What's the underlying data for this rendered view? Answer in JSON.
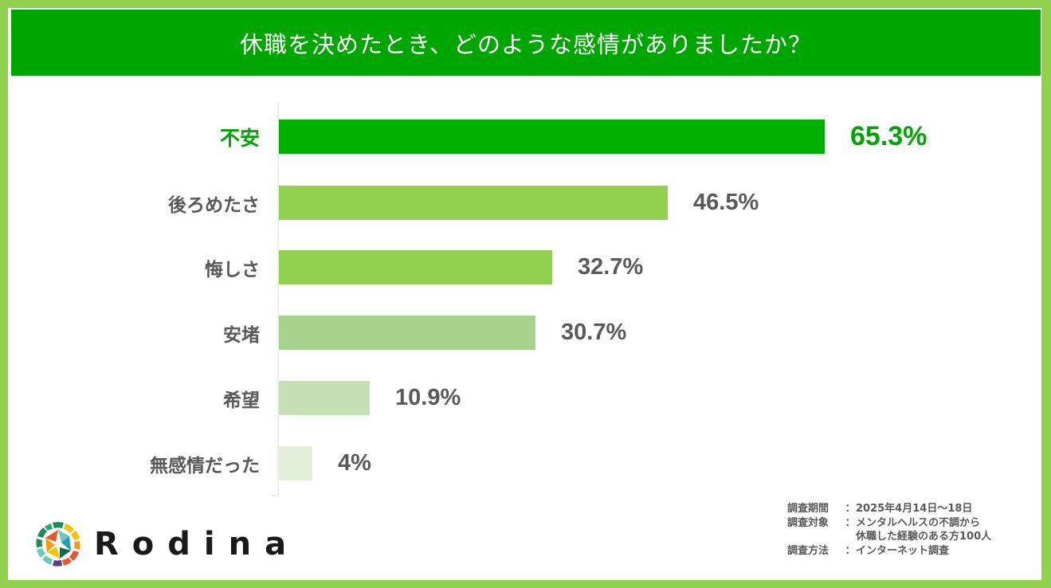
{
  "header": {
    "title": "休職を決めたとき、どのような感情がありましたか？"
  },
  "chart_data": {
    "type": "bar",
    "orientation": "horizontal",
    "title": "休職を決めたとき、どのような感情がありましたか？",
    "xlabel": "",
    "ylabel": "",
    "unit": "%",
    "grid": false,
    "legend": null,
    "categories": [
      "不安",
      "後ろめたさ",
      "悔しさ",
      "安堵",
      "希望",
      "無感情だった"
    ],
    "values": [
      65.3,
      46.5,
      32.7,
      30.7,
      10.9,
      4
    ],
    "value_labels": [
      "65.3%",
      "46.5%",
      "32.7%",
      "30.7%",
      "10.9%",
      "4%"
    ],
    "bar_colors": [
      "#00b000",
      "#92d050",
      "#92d050",
      "#a9d18e",
      "#c5e0b4",
      "#e2f0d9"
    ],
    "highlight_index": 0,
    "highlight_color": "#00a600",
    "xlim": [
      0,
      65.3
    ]
  },
  "bars": [
    {
      "label": "不安",
      "value": 65.3,
      "value_label": "65.3%",
      "color": "#00b000",
      "highlight": true
    },
    {
      "label": "後ろめたさ",
      "value": 46.5,
      "value_label": "46.5%",
      "color": "#92d050",
      "highlight": false
    },
    {
      "label": "悔しさ",
      "value": 32.7,
      "value_label": "32.7%",
      "color": "#92d050",
      "highlight": false
    },
    {
      "label": "安堵",
      "value": 30.7,
      "value_label": "30.7%",
      "color": "#a9d18e",
      "highlight": false
    },
    {
      "label": "希望",
      "value": 10.9,
      "value_label": "10.9%",
      "color": "#c5e0b4",
      "highlight": false
    },
    {
      "label": "無感情だった",
      "value": 4,
      "value_label": "4%",
      "color": "#e2f0d9",
      "highlight": false
    }
  ],
  "survey": {
    "period_key": "調査期間",
    "period_value": "2025年4月14日～18日",
    "target_key": "調査対象",
    "target_value_line1": "メンタルヘルスの不調から",
    "target_value_line2": "休職した経験のある方100人",
    "method_key": "調査方法",
    "method_value": "インターネット調査",
    "separator": "："
  },
  "brand": {
    "name": "Rodina",
    "icon": "aperture-logo-icon"
  },
  "colors": {
    "frame": "#92d050",
    "banner": "#00a600",
    "text_gray": "#595959",
    "highlight": "#00a600"
  }
}
